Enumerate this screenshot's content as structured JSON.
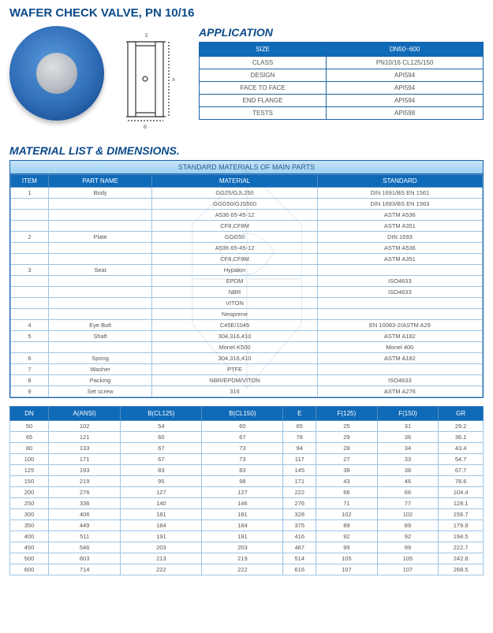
{
  "title": "WAFER CHECK VALVE, PN 10/16",
  "application": {
    "heading": "APPLICATION",
    "header": {
      "c1": "SIZE",
      "c2": "DN50~600"
    },
    "rows": [
      {
        "k": "CLASS",
        "v": "PN10/16   CL125/150"
      },
      {
        "k": "DESIGN",
        "v": "API594"
      },
      {
        "k": "FACE TO FACE",
        "v": "API594"
      },
      {
        "k": "END FLANGE",
        "v": "API594"
      },
      {
        "k": "TESTS",
        "v": "API598"
      }
    ]
  },
  "materials": {
    "heading": "MATERIAL LIST & DIMENSIONS.",
    "caption": "STANDARD MATERIALS OF MAIN PARTS",
    "header": {
      "c1": "ITEM",
      "c2": "PART NAME",
      "c3": "MATERIAL",
      "c4": "STANDARD"
    },
    "rows": [
      {
        "item": "1",
        "part": "Body",
        "mat": "GG25/GJL250",
        "std": "DIN 1691/BS EN 1561"
      },
      {
        "item": "",
        "part": "",
        "mat": "GGG50/GJS500",
        "std": "DIN 1693/BS EN 1563"
      },
      {
        "item": "",
        "part": "",
        "mat": "A536 65-45-12",
        "std": "ASTM A536"
      },
      {
        "item": "",
        "part": "",
        "mat": "CF8,CF8M",
        "std": "ASTM A351"
      },
      {
        "item": "2",
        "part": "Plate",
        "mat": "GGG50",
        "std": "DIN 1693"
      },
      {
        "item": "",
        "part": "",
        "mat": "A536 65-45-12",
        "std": "ASTM A536"
      },
      {
        "item": "",
        "part": "",
        "mat": "CF8,CF8M",
        "std": "ASTM A351"
      },
      {
        "item": "3",
        "part": "Seat",
        "mat": "Hypalon",
        "std": ""
      },
      {
        "item": "",
        "part": "",
        "mat": "EPDM",
        "std": "ISO4633"
      },
      {
        "item": "",
        "part": "",
        "mat": "NBR",
        "std": "ISO4633"
      },
      {
        "item": "",
        "part": "",
        "mat": "VITON",
        "std": ""
      },
      {
        "item": "",
        "part": "",
        "mat": "Neoprene",
        "std": ""
      },
      {
        "item": "4",
        "part": "Eye Bolt",
        "mat": "C45E/1045",
        "std": "EN 10083-2/ASTM A29"
      },
      {
        "item": "5",
        "part": "Shaft",
        "mat": "304,316,410",
        "std": "ASTM A182"
      },
      {
        "item": "",
        "part": "",
        "mat": "Monel K500",
        "std": "Monel 400"
      },
      {
        "item": "6",
        "part": "Spring",
        "mat": "304,316,410",
        "std": "ASTM A182"
      },
      {
        "item": "7",
        "part": "Washer",
        "mat": "PTFE",
        "std": ""
      },
      {
        "item": "8",
        "part": "Packing",
        "mat": "NBR/EPDM/VITON",
        "std": "ISO4633"
      },
      {
        "item": "9",
        "part": "Set screw",
        "mat": "316",
        "std": "ASTM A276"
      }
    ]
  },
  "dimensions": {
    "header": [
      "DN",
      "A(ANSI)",
      "B(CL125)",
      "B(CL150)",
      "E",
      "F(125)",
      "F(150)",
      "GR"
    ],
    "rows": [
      [
        "50",
        "102",
        "54",
        "60",
        "65",
        "25",
        "31",
        "29.2"
      ],
      [
        "65",
        "121",
        "60",
        "67",
        "78",
        "29",
        "36",
        "36.1"
      ],
      [
        "80",
        "133",
        "67",
        "73",
        "94",
        "28",
        "34",
        "43.4"
      ],
      [
        "100",
        "171",
        "67",
        "73",
        "117",
        "27",
        "33",
        "54.7"
      ],
      [
        "125",
        "193",
        "83",
        "83",
        "145",
        "38",
        "38",
        "67.7"
      ],
      [
        "150",
        "219",
        "95",
        "98",
        "171",
        "43",
        "46",
        "78.6"
      ],
      [
        "200",
        "276",
        "127",
        "127",
        "222",
        "66",
        "66",
        "104.4"
      ],
      [
        "250",
        "336",
        "140",
        "146",
        "276",
        "71",
        "77",
        "128.1"
      ],
      [
        "300",
        "406",
        "181",
        "181",
        "328",
        "102",
        "102",
        "156.7"
      ],
      [
        "350",
        "449",
        "184",
        "184",
        "375",
        "89",
        "89",
        "179.9"
      ],
      [
        "400",
        "511",
        "191",
        "191",
        "416",
        "92",
        "92",
        "194.5"
      ],
      [
        "450",
        "546",
        "203",
        "203",
        "467",
        "99",
        "99",
        "222.7"
      ],
      [
        "500",
        "603",
        "213",
        "219",
        "514",
        "105",
        "105",
        "242.8"
      ],
      [
        "600",
        "714",
        "222",
        "222",
        "616",
        "107",
        "107",
        "268.5"
      ]
    ]
  },
  "colors": {
    "brand_blue": "#0f6ab8",
    "border_blue": "#1e62a8",
    "cell_border": "#9cc5e6",
    "caption_grad_top": "#c6e4f8",
    "caption_grad_bot": "#9fd0f0",
    "title_blue": "#0b4a8a"
  }
}
